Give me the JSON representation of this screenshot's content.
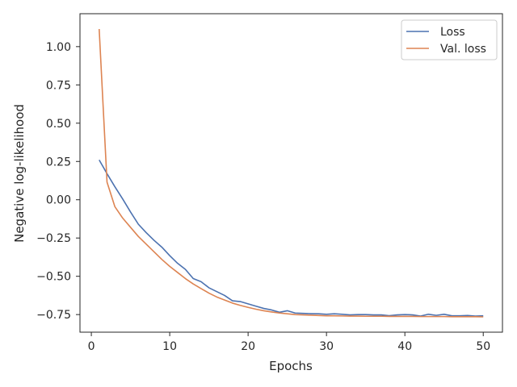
{
  "chart_data": {
    "type": "line",
    "title": "",
    "xlabel": "Epochs",
    "ylabel": "Negative log-likelihood",
    "xlim": [
      -1.45,
      52.45
    ],
    "ylim": [
      -0.865,
      1.215
    ],
    "xticks": [
      0,
      10,
      20,
      30,
      40,
      50
    ],
    "yticks": [
      -0.75,
      -0.5,
      -0.25,
      0.0,
      0.25,
      0.5,
      0.75,
      1.0
    ],
    "ytick_labels": [
      "−0.75",
      "−0.50",
      "−0.25",
      "0.00",
      "0.25",
      "0.50",
      "0.75",
      "1.00"
    ],
    "grid": false,
    "legend_position": "top-right",
    "x": [
      1,
      2,
      3,
      4,
      5,
      6,
      7,
      8,
      9,
      10,
      11,
      12,
      13,
      14,
      15,
      16,
      17,
      18,
      19,
      20,
      21,
      22,
      23,
      24,
      25,
      26,
      27,
      28,
      29,
      30,
      31,
      32,
      33,
      34,
      35,
      36,
      37,
      38,
      39,
      40,
      41,
      42,
      43,
      44,
      45,
      46,
      47,
      48,
      49,
      50
    ],
    "series": [
      {
        "name": "Loss",
        "color": "#4c72b0",
        "values": [
          0.26,
          0.17,
          0.085,
          0.005,
          -0.08,
          -0.16,
          -0.215,
          -0.265,
          -0.31,
          -0.365,
          -0.415,
          -0.455,
          -0.515,
          -0.535,
          -0.575,
          -0.6,
          -0.625,
          -0.66,
          -0.665,
          -0.68,
          -0.695,
          -0.71,
          -0.72,
          -0.735,
          -0.725,
          -0.74,
          -0.742,
          -0.744,
          -0.745,
          -0.748,
          -0.745,
          -0.748,
          -0.752,
          -0.75,
          -0.75,
          -0.752,
          -0.752,
          -0.757,
          -0.752,
          -0.75,
          -0.752,
          -0.76,
          -0.748,
          -0.755,
          -0.748,
          -0.758,
          -0.758,
          -0.756,
          -0.76,
          -0.758
        ]
      },
      {
        "name": "Val. loss",
        "color": "#dd8452",
        "values": [
          1.115,
          0.115,
          -0.045,
          -0.12,
          -0.18,
          -0.24,
          -0.29,
          -0.34,
          -0.39,
          -0.435,
          -0.475,
          -0.515,
          -0.55,
          -0.58,
          -0.61,
          -0.635,
          -0.655,
          -0.675,
          -0.69,
          -0.703,
          -0.715,
          -0.725,
          -0.733,
          -0.74,
          -0.745,
          -0.75,
          -0.752,
          -0.754,
          -0.756,
          -0.758,
          -0.758,
          -0.759,
          -0.76,
          -0.76,
          -0.761,
          -0.761,
          -0.761,
          -0.762,
          -0.762,
          -0.762,
          -0.762,
          -0.763,
          -0.763,
          -0.763,
          -0.763,
          -0.764,
          -0.764,
          -0.764,
          -0.764,
          -0.765
        ]
      }
    ]
  }
}
